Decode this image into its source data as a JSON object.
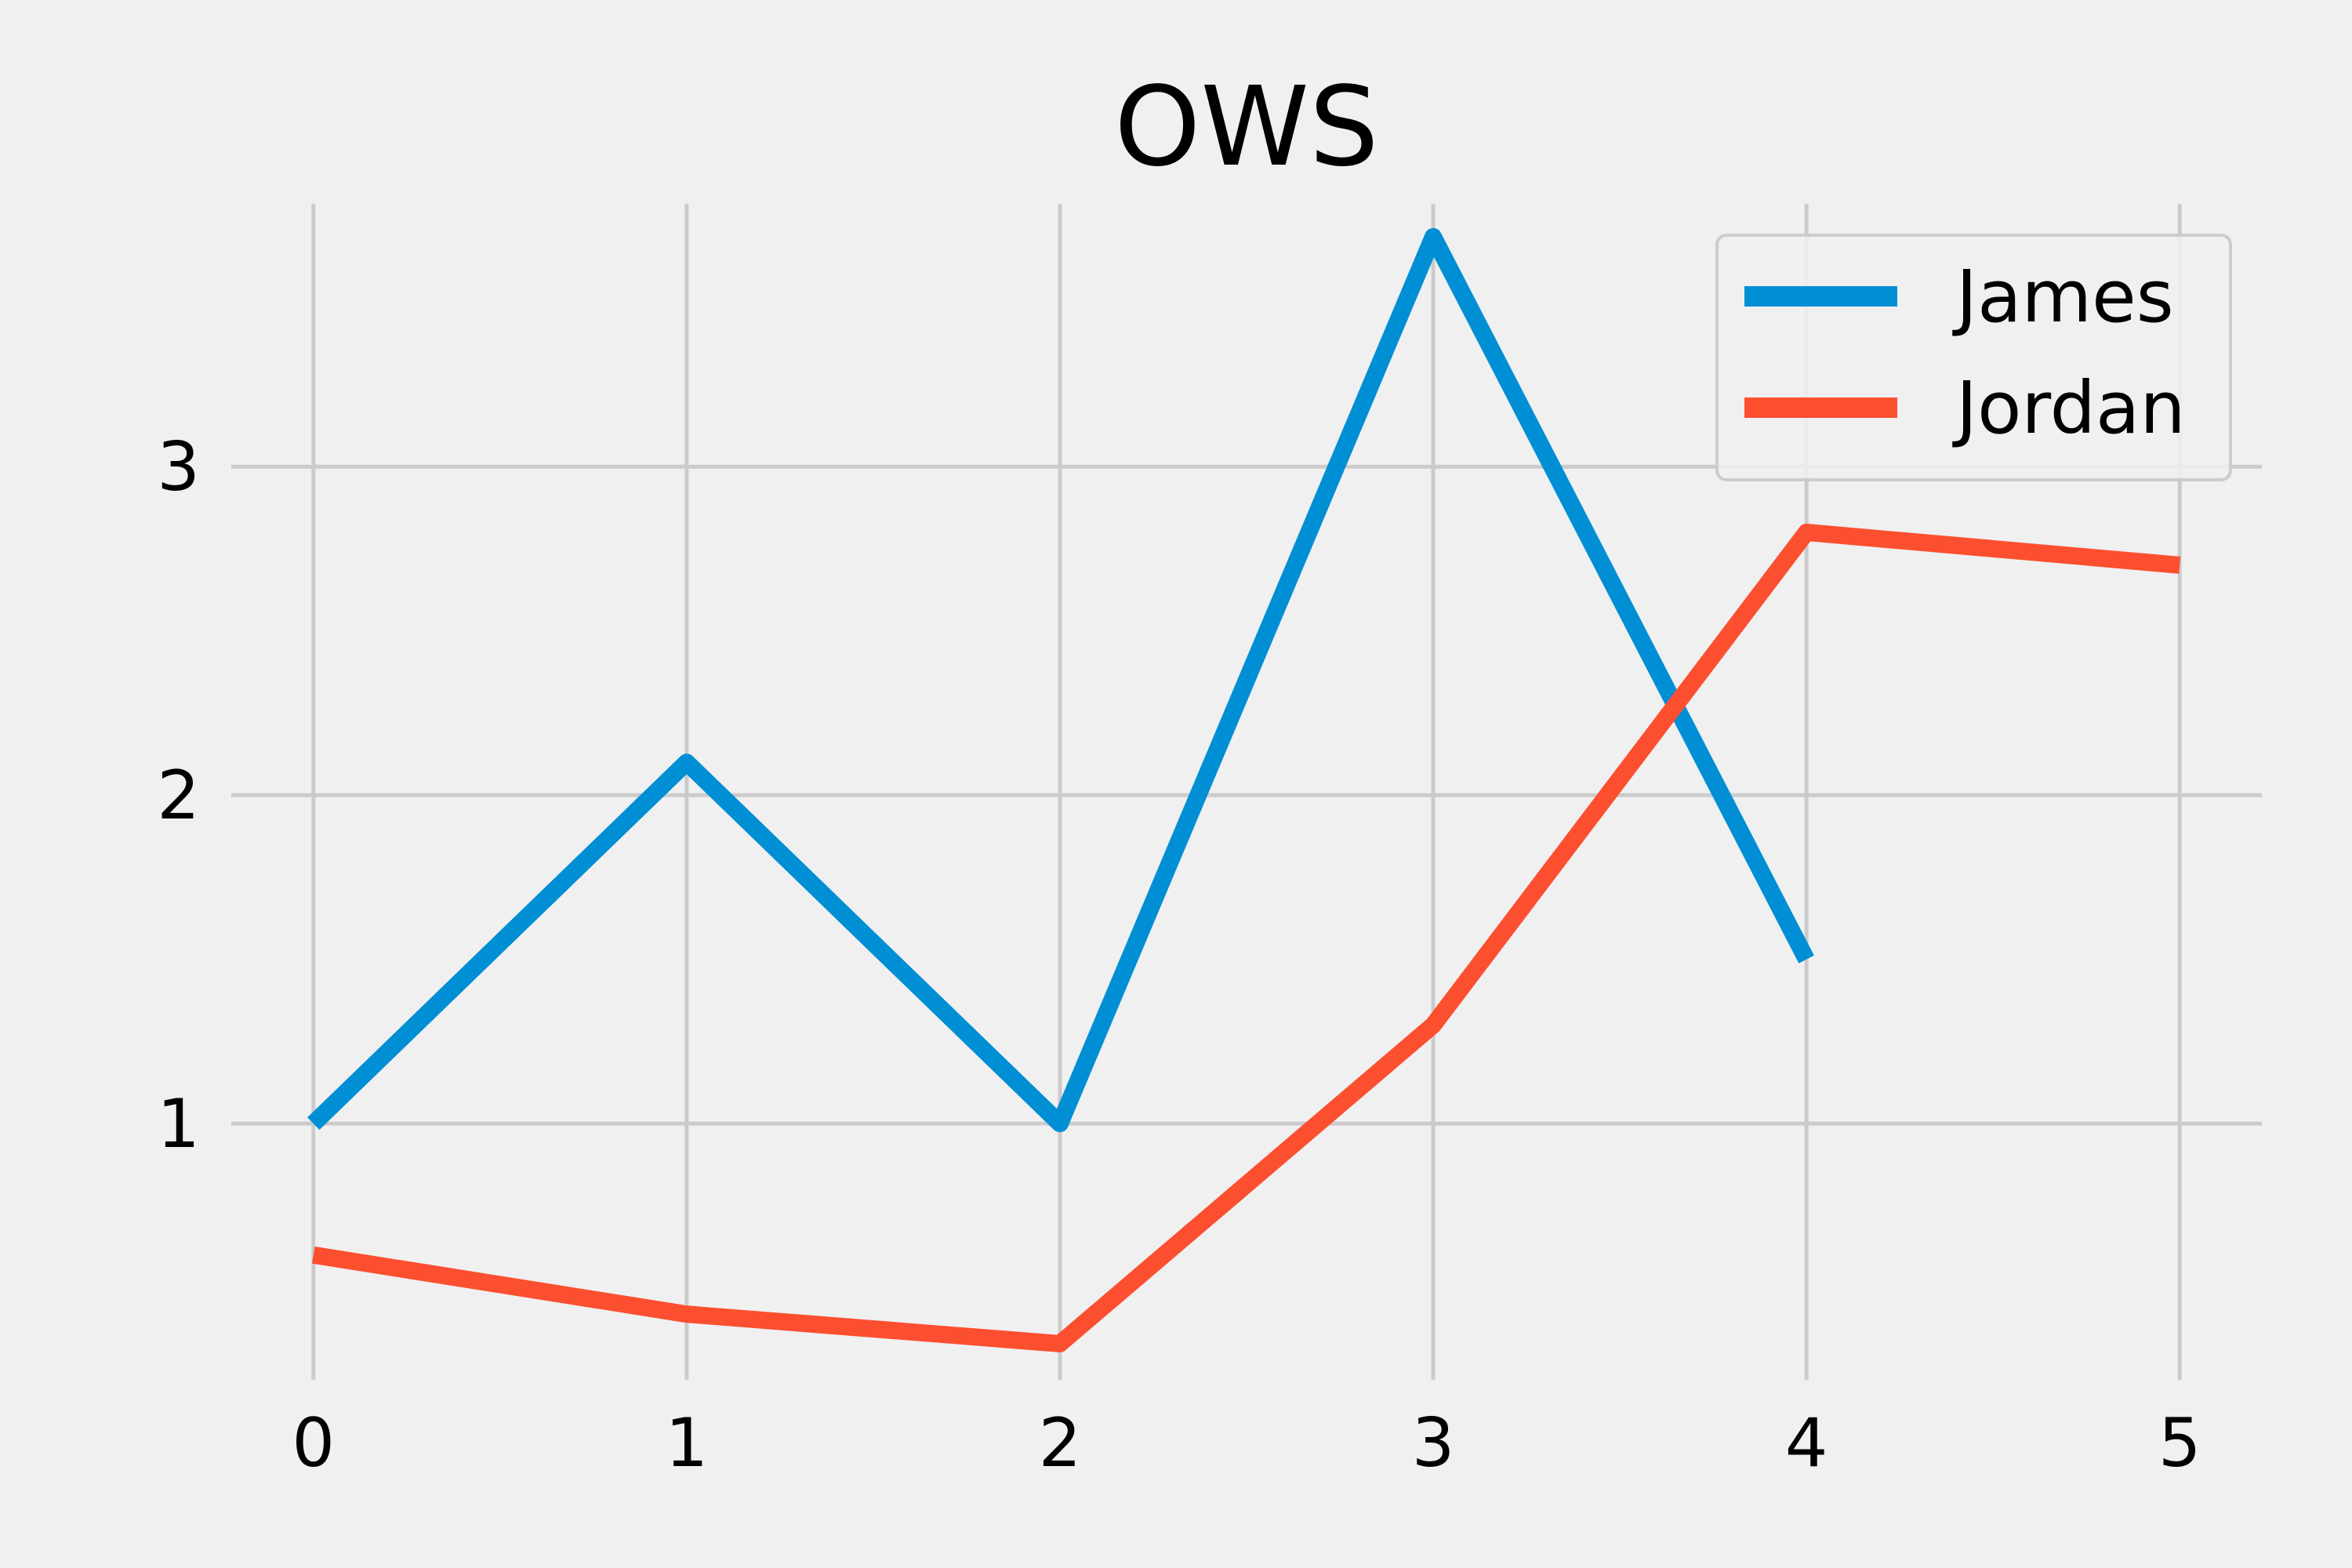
{
  "chart_data": {
    "type": "line",
    "title": "OWS",
    "xlabel": "",
    "ylabel": "",
    "x": [
      0,
      1,
      2,
      3,
      4,
      5
    ],
    "xticks": [
      "0",
      "1",
      "2",
      "3",
      "4",
      "5"
    ],
    "yticks": [
      "1",
      "2",
      "3"
    ],
    "xlim": [
      -0.22,
      5.22
    ],
    "ylim": [
      0.22,
      3.8
    ],
    "grid": true,
    "legend_position": "top-right",
    "series": [
      {
        "name": "James",
        "color": "#008fd5",
        "x": [
          0,
          1,
          2,
          3,
          4
        ],
        "values": [
          1.0,
          2.1,
          1.0,
          3.7,
          1.5
        ]
      },
      {
        "name": "Jordan",
        "color": "#fc4f30",
        "x": [
          0,
          1,
          2,
          3,
          4,
          5
        ],
        "values": [
          0.6,
          0.42,
          0.33,
          1.3,
          2.8,
          2.7
        ]
      }
    ]
  }
}
